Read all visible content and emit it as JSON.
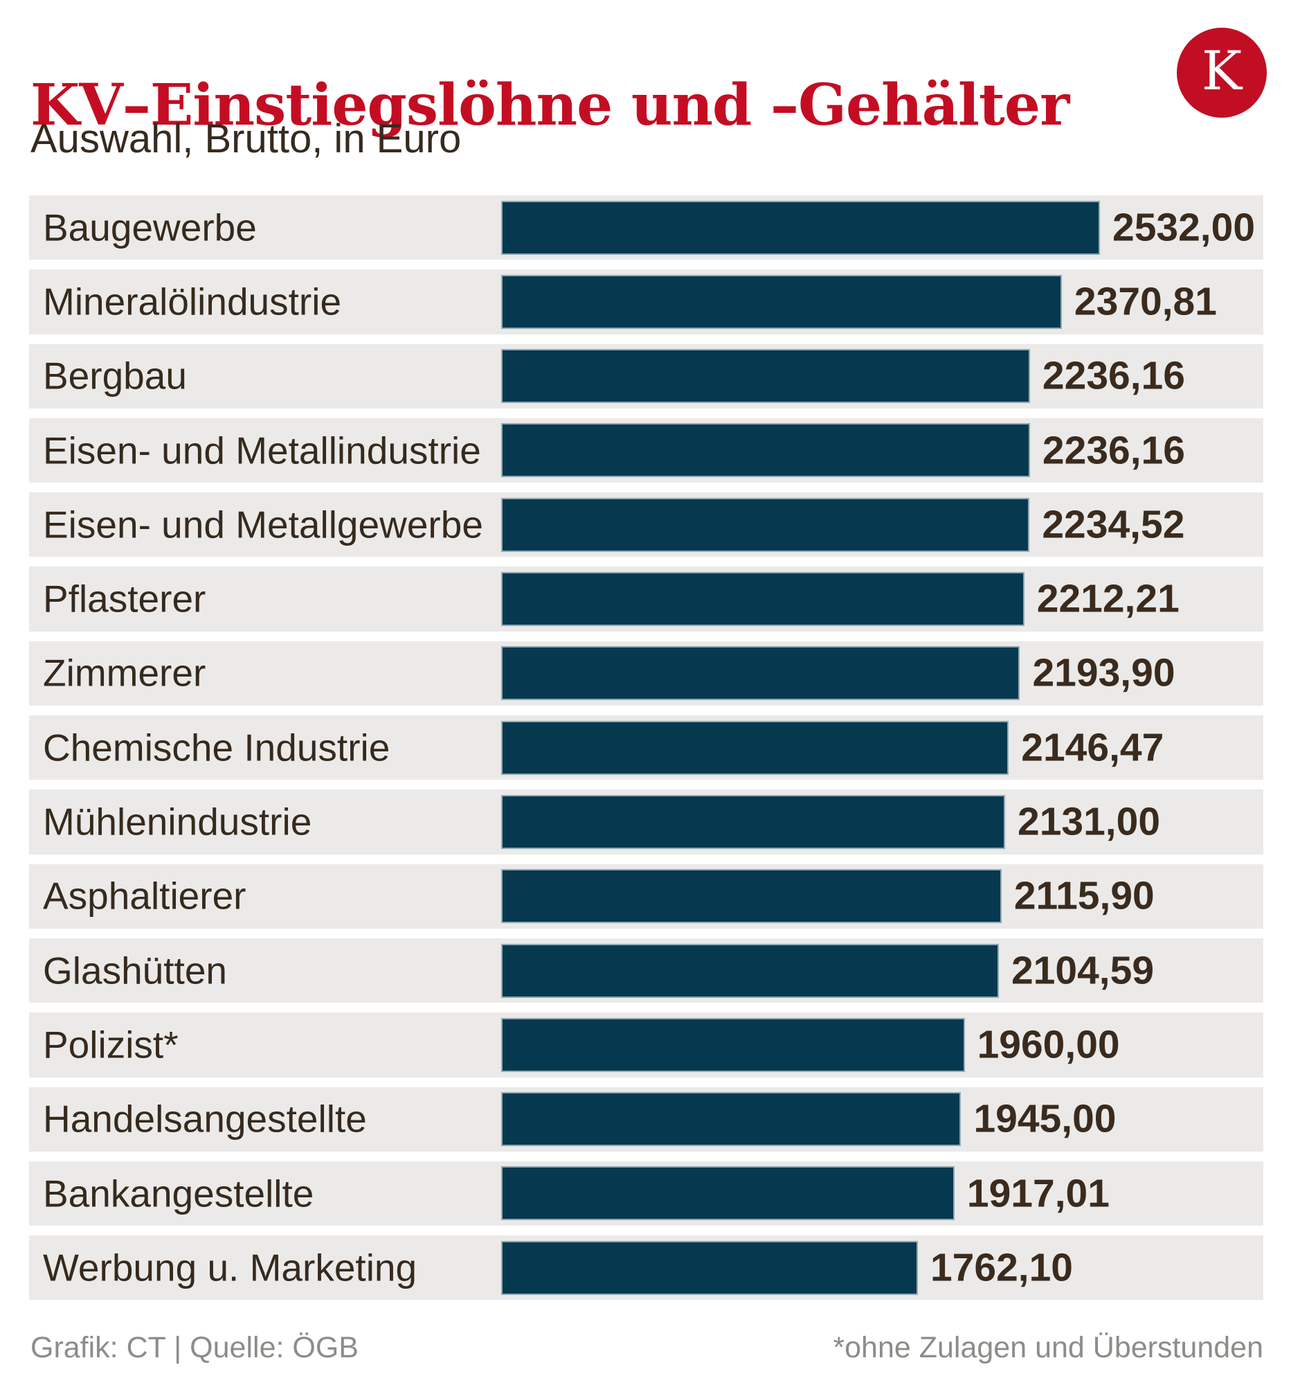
{
  "header": {
    "title": "KV–Einstiegslöhne und –Gehälter",
    "subtitle": "Auswahl, Brutto, in Euro",
    "logo_letter": "K"
  },
  "footer": {
    "credit": "Grafik: CT | Quelle: ÖGB",
    "note": "*ohne Zulagen und Überstunden"
  },
  "colors": {
    "title_red": "#c40d22",
    "logo_red": "#c10e23",
    "bar_fill": "#06394f",
    "bar_edge": "#8fa8b4",
    "row_bg": "#ebeae8",
    "text_dark": "#362a1e",
    "value_dark": "#3a2b1e",
    "footer_gray": "#8e8c89"
  },
  "chart_data": {
    "type": "bar",
    "orientation": "horizontal",
    "title": "KV–Einstiegslöhne und –Gehälter",
    "subtitle": "Auswahl, Brutto, in Euro",
    "unit": "Euro, brutto",
    "xlim": [
      0,
      2532
    ],
    "grid": false,
    "legend": false,
    "categories": [
      "Baugewerbe",
      "Mineralölindustrie",
      "Bergbau",
      "Eisen- und Metallindustrie",
      "Eisen- und Metallgewerbe",
      "Pflasterer",
      "Zimmerer",
      "Chemische Industrie",
      "Mühlenindustrie",
      "Asphaltierer",
      "Glashütten",
      "Polizist*",
      "Handelsangestellte",
      "Bankangestellte",
      "Werbung u. Marketing"
    ],
    "values": [
      2532.0,
      2370.81,
      2236.16,
      2236.16,
      2234.52,
      2212.21,
      2193.9,
      2146.47,
      2131.0,
      2115.9,
      2104.59,
      1960.0,
      1945.0,
      1917.01,
      1762.1
    ],
    "value_labels": [
      "2532,00",
      "2370,81",
      "2236,16",
      "2236,16",
      "2234,52",
      "2212,21",
      "2193,90",
      "2146,47",
      "2131,00",
      "2115,90",
      "2104,59",
      "1960,00",
      "1945,00",
      "1917,01",
      "1762,10"
    ],
    "annotations": [
      "*ohne Zulagen und Überstunden"
    ]
  }
}
